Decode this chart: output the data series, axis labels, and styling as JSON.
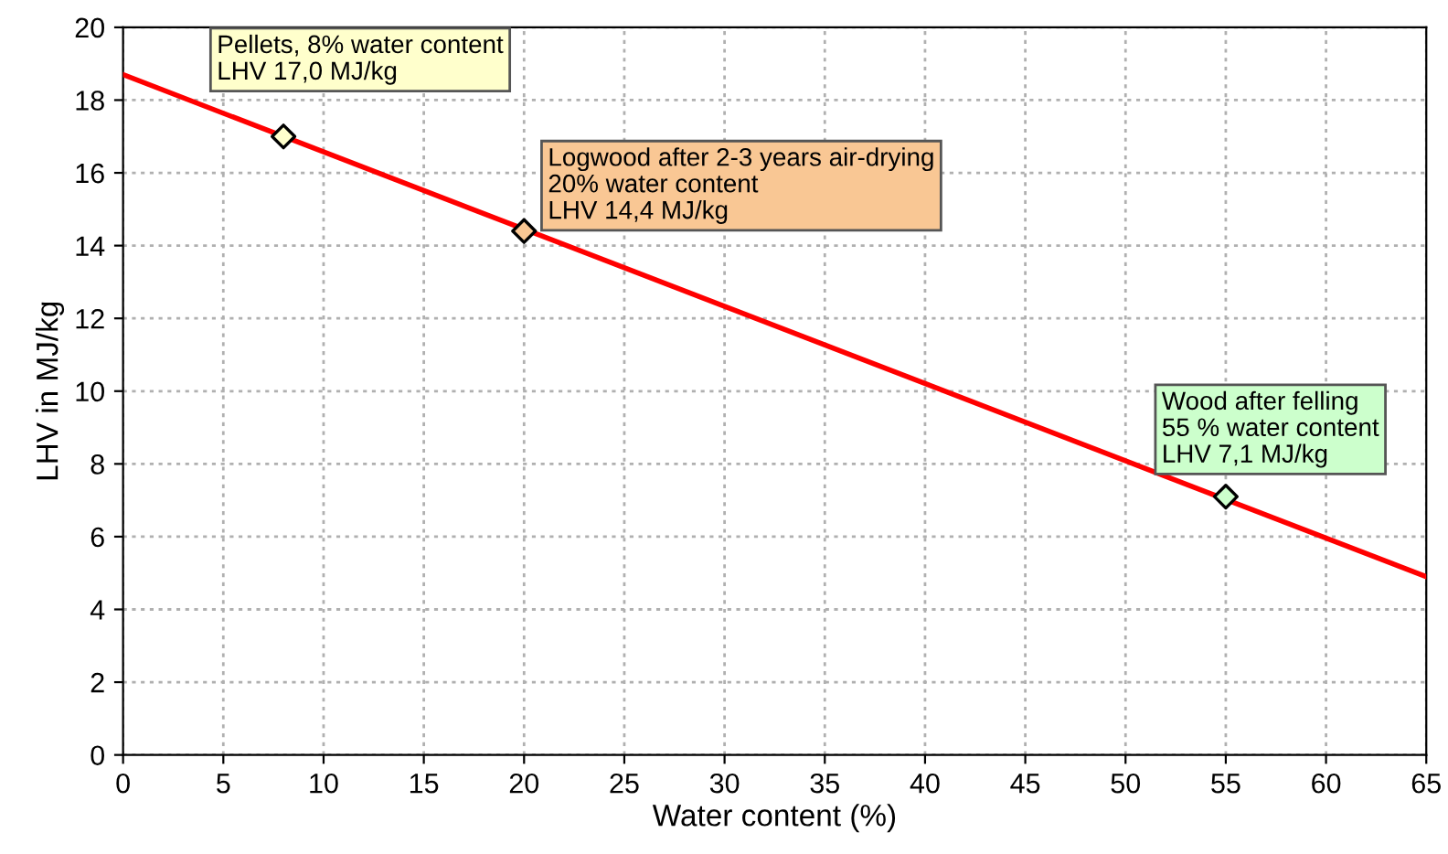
{
  "chart_data": {
    "type": "line",
    "xlabel": "Water content (%)",
    "ylabel": "LHV in MJ/kg",
    "xlim": [
      0,
      65
    ],
    "ylim": [
      0,
      20
    ],
    "xticks": [
      0,
      5,
      10,
      15,
      20,
      25,
      30,
      35,
      40,
      45,
      50,
      55,
      60,
      65
    ],
    "yticks": [
      0,
      2,
      4,
      6,
      8,
      10,
      12,
      14,
      16,
      18,
      20
    ],
    "grid": true,
    "series": [
      {
        "x": [
          0,
          65
        ],
        "values": [
          18.7,
          4.9
        ],
        "color": "#ff0000",
        "marker": "none"
      },
      {
        "type": "scatter",
        "x": [
          8,
          20,
          55
        ],
        "values": [
          17.0,
          14.4,
          7.1
        ],
        "color": "#000000",
        "colors": [
          "#ffffcc",
          "#f9c794",
          "#ccffcc"
        ],
        "marker": "diamond"
      }
    ],
    "annotations": [
      "Pellets, 8% water content\nLHV 17,0 MJ/kg",
      "Logwood after 2-3 years air-drying\n20% water content\nLHV 14,4 MJ/kg",
      "Wood after felling\n55 % water content\nLHV 7,1 MJ/kg"
    ]
  }
}
